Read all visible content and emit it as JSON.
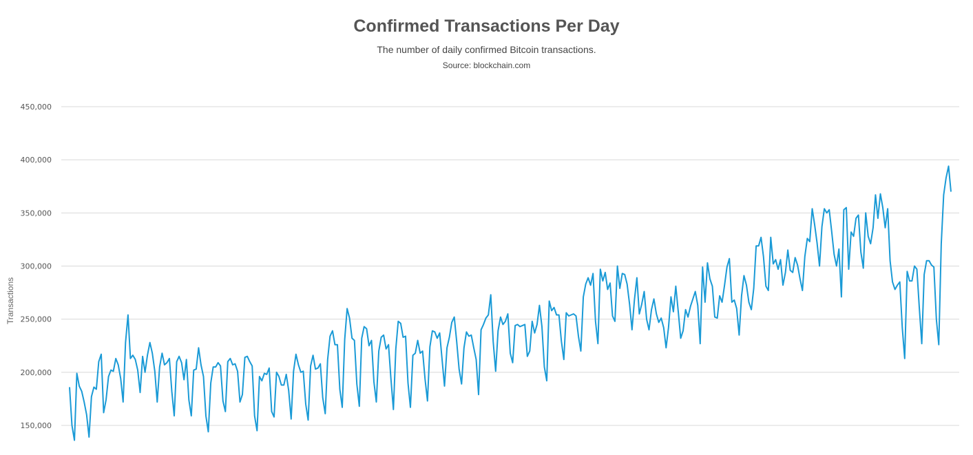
{
  "chart_data": {
    "type": "line",
    "title": "Confirmed Transactions Per Day",
    "subtitle": "The number of daily confirmed Bitcoin transactions.",
    "source": "Source: blockchain.com",
    "xlabel": "",
    "ylabel": "Transactions",
    "ylim": [
      150000,
      450000
    ],
    "grid": true,
    "yticks": [
      150000,
      200000,
      250000,
      300000,
      350000,
      400000,
      450000
    ],
    "ytick_labels": [
      "150,000",
      "200,000",
      "250,000",
      "300,000",
      "350,000",
      "400,000",
      "450,000"
    ],
    "line_color": "#1a9ad6",
    "series": [
      {
        "name": "Transactions",
        "values": [
          186000,
          150000,
          136000,
          199000,
          187000,
          182000,
          172000,
          160000,
          139000,
          177000,
          186000,
          184000,
          210000,
          217000,
          162000,
          174000,
          196000,
          202000,
          201000,
          213000,
          207000,
          194000,
          172000,
          228000,
          254000,
          213000,
          216000,
          212000,
          202000,
          181000,
          215000,
          200000,
          216000,
          228000,
          218000,
          201000,
          172000,
          205000,
          218000,
          207000,
          209000,
          213000,
          182000,
          159000,
          210000,
          215000,
          209000,
          193000,
          212000,
          174000,
          159000,
          202000,
          203000,
          223000,
          207000,
          196000,
          159000,
          144000,
          190000,
          205000,
          205000,
          209000,
          206000,
          173000,
          163000,
          210000,
          213000,
          207000,
          208000,
          201000,
          172000,
          179000,
          214000,
          215000,
          210000,
          206000,
          159000,
          145000,
          196000,
          192000,
          199000,
          198000,
          204000,
          163000,
          158000,
          200000,
          196000,
          188000,
          188000,
          198000,
          183000,
          156000,
          201000,
          217000,
          207000,
          200000,
          201000,
          170000,
          155000,
          206000,
          216000,
          203000,
          204000,
          208000,
          176000,
          161000,
          212000,
          234000,
          239000,
          226000,
          226000,
          184000,
          167000,
          231000,
          260000,
          251000,
          232000,
          230000,
          189000,
          168000,
          232000,
          243000,
          241000,
          225000,
          230000,
          191000,
          172000,
          220000,
          233000,
          235000,
          222000,
          226000,
          194000,
          165000,
          222000,
          248000,
          246000,
          233000,
          234000,
          190000,
          167000,
          216000,
          218000,
          230000,
          218000,
          220000,
          194000,
          173000,
          224000,
          239000,
          238000,
          232000,
          237000,
          212000,
          187000,
          223000,
          233000,
          247000,
          252000,
          229000,
          203000,
          189000,
          223000,
          238000,
          234000,
          235000,
          223000,
          212000,
          179000,
          240000,
          245000,
          251000,
          254000,
          273000,
          229000,
          201000,
          239000,
          252000,
          245000,
          248000,
          255000,
          218000,
          209000,
          244000,
          245000,
          243000,
          244000,
          245000,
          215000,
          220000,
          248000,
          237000,
          245000,
          263000,
          243000,
          205000,
          192000,
          267000,
          258000,
          261000,
          254000,
          254000,
          229000,
          212000,
          256000,
          253000,
          254000,
          255000,
          253000,
          234000,
          220000,
          271000,
          283000,
          289000,
          282000,
          293000,
          248000,
          227000,
          297000,
          286000,
          294000,
          278000,
          284000,
          253000,
          248000,
          300000,
          279000,
          293000,
          292000,
          283000,
          264000,
          240000,
          268000,
          289000,
          255000,
          264000,
          276000,
          250000,
          240000,
          259000,
          269000,
          255000,
          247000,
          251000,
          242000,
          223000,
          242000,
          271000,
          257000,
          281000,
          257000,
          232000,
          239000,
          259000,
          252000,
          262000,
          269000,
          276000,
          263000,
          227000,
          299000,
          266000,
          303000,
          288000,
          281000,
          252000,
          251000,
          272000,
          266000,
          282000,
          299000,
          307000,
          266000,
          268000,
          260000,
          235000,
          272000,
          291000,
          282000,
          266000,
          259000,
          279000,
          319000,
          319000,
          327000,
          309000,
          281000,
          277000,
          327000,
          302000,
          306000,
          297000,
          306000,
          282000,
          294000,
          315000,
          296000,
          294000,
          308000,
          301000,
          288000,
          277000,
          309000,
          326000,
          323000,
          354000,
          339000,
          322000,
          300000,
          337000,
          354000,
          350000,
          353000,
          333000,
          311000,
          300000,
          316000,
          271000,
          353000,
          355000,
          297000,
          332000,
          328000,
          345000,
          348000,
          313000,
          298000,
          350000,
          328000,
          321000,
          336000,
          367000,
          345000,
          368000,
          355000,
          336000,
          354000,
          305000,
          285000,
          278000,
          282000,
          285000,
          242000,
          213000,
          295000,
          286000,
          286000,
          300000,
          297000,
          261000,
          227000,
          292000,
          305000,
          305000,
          301000,
          299000,
          250000,
          226000,
          321000,
          367000,
          383000,
          394000,
          370000
        ]
      }
    ]
  }
}
